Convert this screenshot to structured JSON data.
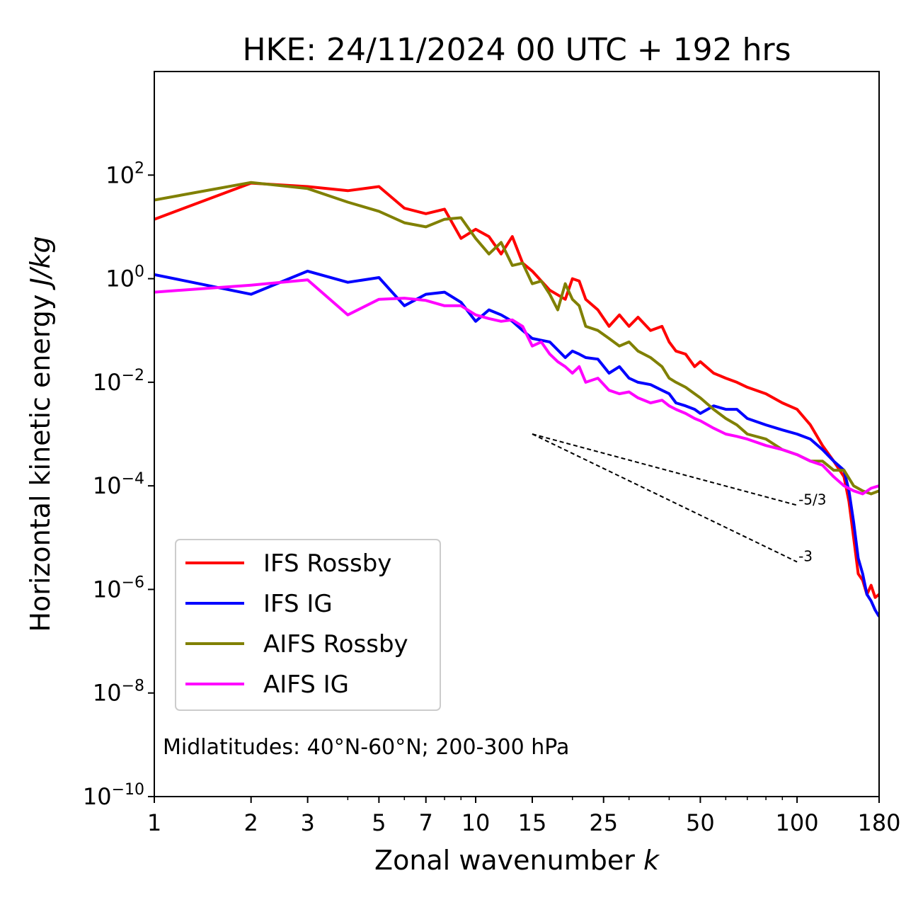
{
  "chart_data": {
    "type": "line",
    "title": "HKE: 24/11/2024 00 UTC + 192 hrs",
    "xlabel": "Zonal wavenumber",
    "xlabel_var": "k",
    "ylabel": "Horizontal kinetic energy",
    "ylabel_unit": "J/kg",
    "x_scale": "log",
    "y_scale": "log",
    "xlim": [
      1,
      180
    ],
    "ylim": [
      1e-10,
      10000.0
    ],
    "x_ticks": [
      1,
      2,
      3,
      5,
      7,
      10,
      15,
      25,
      50,
      100,
      180
    ],
    "x_tick_labels": [
      "1",
      "2",
      "3",
      "5",
      "7",
      "10",
      "15",
      "25",
      "50",
      "100",
      "180"
    ],
    "y_ticks": [
      {
        "value": 100.0,
        "base": "10",
        "exp": "2"
      },
      {
        "value": 1,
        "base": "10",
        "exp": "0"
      },
      {
        "value": 0.01,
        "base": "10",
        "exp": "−2"
      },
      {
        "value": 0.0001,
        "base": "10",
        "exp": "−4"
      },
      {
        "value": 1e-06,
        "base": "10",
        "exp": "−6"
      },
      {
        "value": 1e-08,
        "base": "10",
        "exp": "−8"
      },
      {
        "value": 1e-10,
        "base": "10",
        "exp": "−10"
      }
    ],
    "grid": false,
    "legend_position": "lower-left",
    "annotation": "Midlatitudes: 40°N-60°N; 200-300 hPa",
    "reference_slopes": [
      {
        "label": "-5/3",
        "x": [
          15,
          100
        ],
        "y": [
          0.001,
          4.22e-05
        ]
      },
      {
        "label": "-3",
        "x": [
          15,
          100
        ],
        "y": [
          0.001,
          3.4e-06
        ]
      }
    ],
    "series": [
      {
        "name": "IFS Rossby",
        "color": "#ff0000",
        "x": [
          1,
          2,
          3,
          4,
          5,
          6,
          7,
          8,
          9,
          10,
          11,
          12,
          13,
          14,
          15,
          17,
          19,
          20,
          21,
          22,
          24,
          26,
          28,
          30,
          32,
          35,
          38,
          40,
          42,
          45,
          48,
          50,
          55,
          60,
          65,
          70,
          80,
          90,
          100,
          110,
          120,
          130,
          140,
          145,
          150,
          155,
          160,
          165,
          170,
          175,
          180
        ],
        "y": [
          14,
          70,
          60,
          50,
          60,
          23,
          18,
          22,
          6,
          9,
          6.5,
          3,
          6.5,
          2,
          1.4,
          0.6,
          0.4,
          1,
          0.9,
          0.4,
          0.25,
          0.12,
          0.2,
          0.12,
          0.18,
          0.1,
          0.12,
          0.06,
          0.04,
          0.035,
          0.02,
          0.025,
          0.015,
          0.012,
          0.01,
          0.008,
          0.006,
          0.004,
          0.003,
          0.0015,
          0.0006,
          0.0003,
          0.00015,
          5e-05,
          1e-05,
          2e-06,
          1.5e-06,
          8e-07,
          1.2e-06,
          7e-07,
          8e-07
        ]
      },
      {
        "name": "IFS IG",
        "color": "#0000ff",
        "x": [
          1,
          2,
          3,
          4,
          5,
          6,
          7,
          8,
          9,
          10,
          11,
          12,
          13,
          14,
          15,
          17,
          19,
          20,
          21,
          22,
          24,
          26,
          28,
          30,
          32,
          35,
          38,
          40,
          42,
          45,
          48,
          50,
          55,
          60,
          65,
          70,
          80,
          90,
          100,
          110,
          120,
          130,
          140,
          145,
          150,
          155,
          160,
          165,
          170,
          175,
          180
        ],
        "y": [
          1.2,
          0.5,
          1.4,
          0.85,
          1.05,
          0.3,
          0.5,
          0.55,
          0.35,
          0.15,
          0.25,
          0.2,
          0.15,
          0.1,
          0.07,
          0.06,
          0.03,
          0.04,
          0.035,
          0.03,
          0.028,
          0.015,
          0.02,
          0.012,
          0.01,
          0.009,
          0.007,
          0.006,
          0.004,
          0.0035,
          0.003,
          0.0025,
          0.0035,
          0.003,
          0.003,
          0.002,
          0.0015,
          0.0012,
          0.001,
          0.0008,
          0.0005,
          0.0003,
          0.0002,
          8e-05,
          2e-05,
          4e-06,
          2e-06,
          8e-07,
          6e-07,
          4e-07,
          3e-07
        ]
      },
      {
        "name": "AIFS Rossby",
        "color": "#808000",
        "x": [
          1,
          2,
          3,
          4,
          5,
          6,
          7,
          8,
          9,
          10,
          11,
          12,
          13,
          14,
          15,
          16,
          17,
          18,
          19,
          20,
          21,
          22,
          24,
          26,
          28,
          30,
          32,
          35,
          38,
          40,
          42,
          45,
          48,
          50,
          55,
          60,
          65,
          70,
          80,
          90,
          100,
          110,
          120,
          130,
          140,
          150,
          160,
          170,
          180
        ],
        "y": [
          33,
          72,
          55,
          30,
          20,
          12,
          10,
          14,
          15,
          6,
          3,
          5,
          1.8,
          2,
          0.8,
          0.9,
          0.5,
          0.25,
          0.8,
          0.4,
          0.3,
          0.12,
          0.1,
          0.07,
          0.05,
          0.06,
          0.04,
          0.03,
          0.02,
          0.012,
          0.01,
          0.008,
          0.006,
          0.005,
          0.003,
          0.002,
          0.0015,
          0.001,
          0.0008,
          0.0005,
          0.0004,
          0.0003,
          0.0003,
          0.0002,
          0.0002,
          0.0001,
          8e-05,
          7e-05,
          8e-05
        ]
      },
      {
        "name": "AIFS IG",
        "color": "#ff00ff",
        "x": [
          1,
          2,
          3,
          4,
          5,
          6,
          7,
          8,
          9,
          10,
          11,
          12,
          13,
          14,
          15,
          16,
          17,
          18,
          19,
          20,
          21,
          22,
          24,
          26,
          28,
          30,
          32,
          35,
          38,
          40,
          42,
          45,
          48,
          50,
          55,
          60,
          65,
          70,
          80,
          90,
          100,
          110,
          120,
          130,
          140,
          150,
          160,
          170,
          180
        ],
        "y": [
          0.55,
          0.75,
          0.95,
          0.2,
          0.4,
          0.42,
          0.38,
          0.3,
          0.3,
          0.2,
          0.17,
          0.15,
          0.16,
          0.12,
          0.05,
          0.06,
          0.035,
          0.025,
          0.02,
          0.015,
          0.02,
          0.01,
          0.012,
          0.007,
          0.006,
          0.0065,
          0.005,
          0.004,
          0.0045,
          0.0035,
          0.003,
          0.0025,
          0.002,
          0.0018,
          0.0013,
          0.001,
          0.0009,
          0.0008,
          0.0006,
          0.0005,
          0.0004,
          0.0003,
          0.00025,
          0.00015,
          0.0001,
          8e-05,
          7e-05,
          9e-05,
          0.0001
        ]
      }
    ]
  }
}
